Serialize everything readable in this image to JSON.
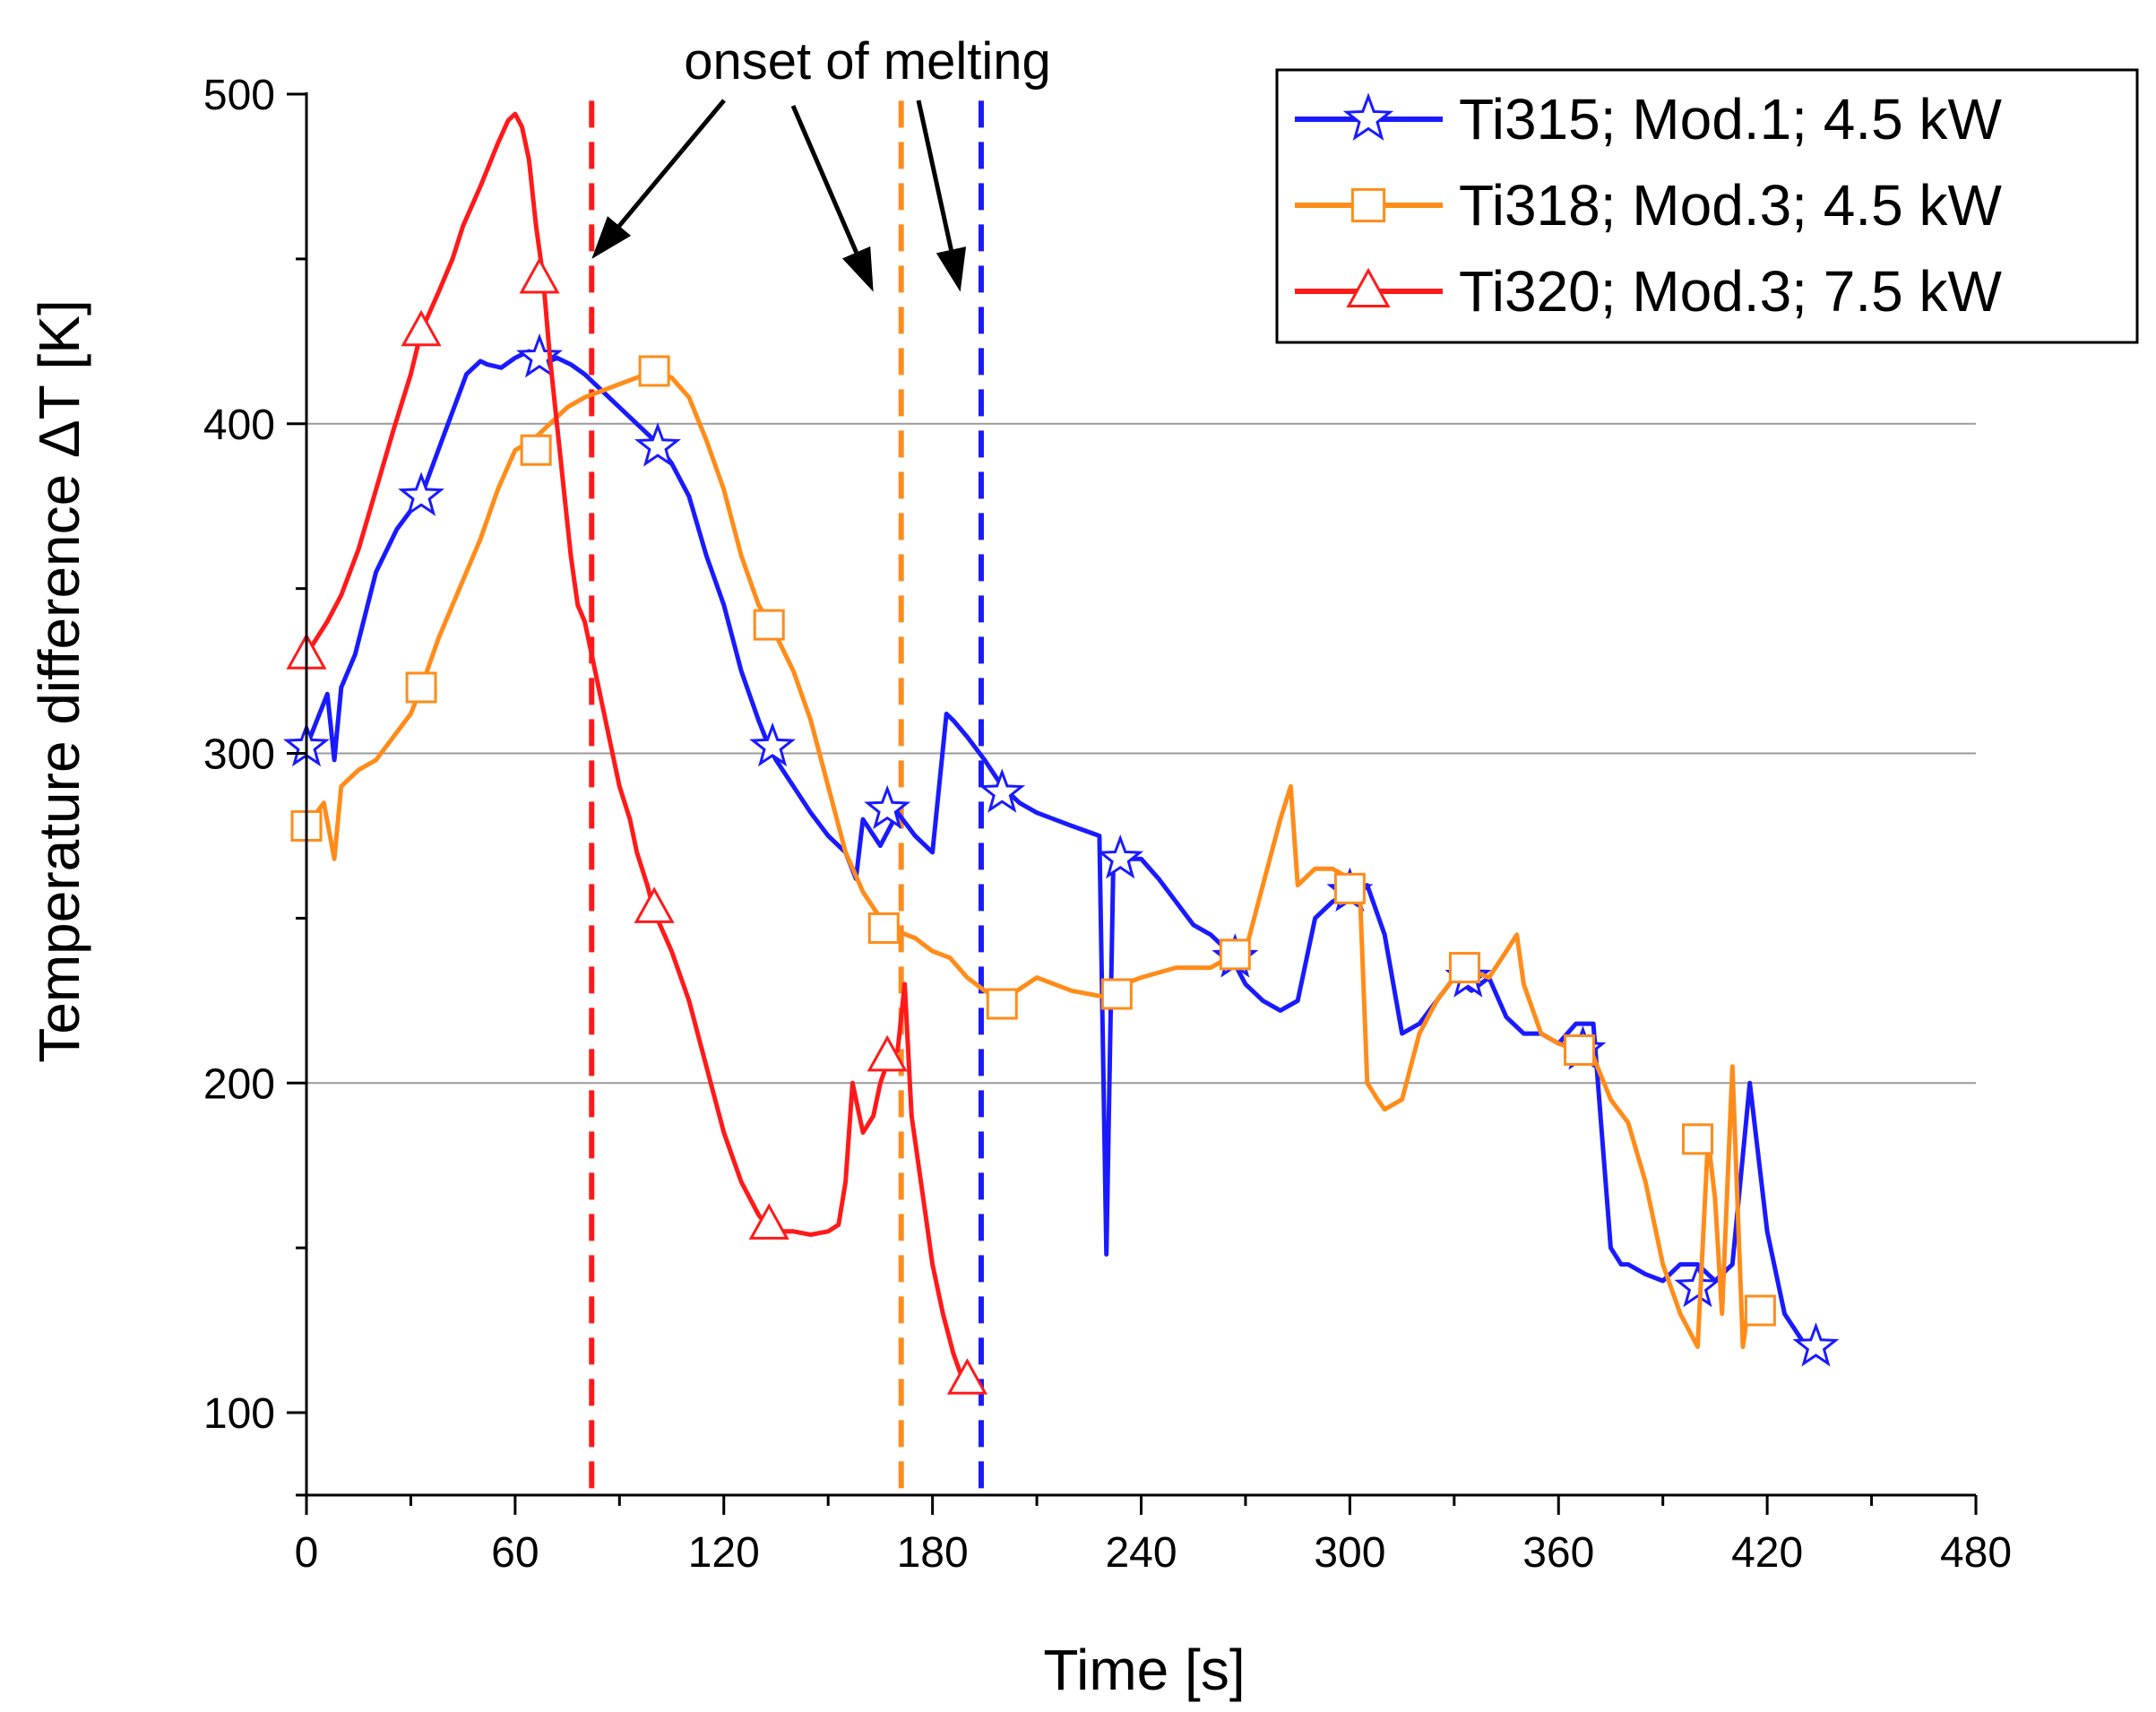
{
  "chart_data": {
    "type": "line",
    "title": "",
    "xlabel": "Time [s]",
    "ylabel": "Temperature difference ΔT [K]",
    "xlim": [
      0,
      480
    ],
    "ylim": [
      75,
      500
    ],
    "xticks": [
      0,
      60,
      120,
      180,
      240,
      300,
      360,
      420,
      480
    ],
    "yticks": [
      100,
      200,
      300,
      400,
      500
    ],
    "grid": {
      "horizontal": true,
      "values": [
        200,
        300,
        400
      ]
    },
    "legend_position": "top-right",
    "annotations": [
      {
        "text": "onset of melting",
        "arrows_to": [
          [
            82,
            450
          ],
          [
            163,
            440
          ],
          [
            188,
            440
          ]
        ]
      }
    ],
    "vlines": [
      {
        "x": 82,
        "series": "Ti320; Mod.3; 7.5 kW",
        "color": "#ff1a1a",
        "style": "dashed"
      },
      {
        "x": 171,
        "series": "Ti318; Mod.3; 4.5 kW",
        "color": "#ff8c1a",
        "style": "dashed"
      },
      {
        "x": 194,
        "series": "Ti315; Mod.1; 4.5 kW",
        "color": "#1a1aff",
        "style": "dashed"
      }
    ],
    "series": [
      {
        "name": "Ti315; Mod.1; 4.5 kW",
        "color": "#1a1aff",
        "marker": "star",
        "x": [
          0,
          3,
          6,
          8,
          10,
          14,
          20,
          26,
          33,
          40,
          46,
          50,
          52,
          56,
          60,
          64,
          68,
          72,
          76,
          80,
          85,
          90,
          95,
          100,
          105,
          110,
          115,
          120,
          125,
          130,
          133,
          135,
          140,
          145,
          150,
          155,
          158,
          160,
          165,
          168,
          170,
          175,
          180,
          184,
          186,
          190,
          195,
          200,
          205,
          210,
          215,
          220,
          228,
          230,
          232,
          235,
          240,
          245,
          250,
          255,
          260,
          265,
          270,
          275,
          280,
          285,
          290,
          295,
          300,
          305,
          310,
          315,
          320,
          325,
          330,
          335,
          340,
          345,
          350,
          355,
          360,
          365,
          370,
          375,
          378,
          380,
          385,
          390,
          395,
          400,
          405,
          410,
          415,
          420,
          425,
          430,
          434
        ],
        "y": [
          302,
          310,
          318,
          298,
          320,
          330,
          355,
          368,
          378,
          398,
          415,
          419,
          418,
          417,
          420,
          422,
          418,
          420,
          418,
          415,
          410,
          405,
          400,
          395,
          388,
          378,
          360,
          345,
          325,
          310,
          302,
          298,
          290,
          282,
          275,
          270,
          262,
          280,
          272,
          278,
          282,
          275,
          270,
          312,
          310,
          305,
          298,
          290,
          285,
          282,
          280,
          278,
          275,
          148,
          268,
          268,
          268,
          262,
          255,
          248,
          245,
          240,
          230,
          225,
          222,
          225,
          250,
          255,
          258,
          260,
          245,
          215,
          218,
          225,
          232,
          228,
          232,
          220,
          215,
          215,
          212,
          218,
          218,
          150,
          145,
          145,
          142,
          140,
          145,
          145,
          140,
          145,
          200,
          155,
          130,
          122,
          120
        ],
        "marker_x": [
          0,
          33,
          67,
          101,
          134,
          167,
          200,
          234,
          267,
          300,
          334,
          367,
          400,
          434
        ],
        "marker_y": [
          302,
          378,
          420,
          393,
          302,
          283,
          288,
          268,
          238,
          258,
          232,
          210,
          138,
          120
        ]
      },
      {
        "name": "Ti318; Mod.3; 4.5 kW",
        "color": "#ff8c1a",
        "marker": "square",
        "x": [
          0,
          5,
          8,
          10,
          15,
          20,
          25,
          30,
          33,
          38,
          42,
          46,
          50,
          55,
          60,
          65,
          70,
          75,
          80,
          85,
          90,
          95,
          100,
          105,
          110,
          115,
          120,
          125,
          130,
          134,
          140,
          145,
          150,
          155,
          160,
          165,
          167,
          170,
          175,
          180,
          185,
          190,
          195,
          200,
          210,
          220,
          230,
          235,
          240,
          250,
          260,
          265,
          270,
          275,
          280,
          283,
          285,
          290,
          295,
          300,
          303,
          305,
          308,
          310,
          315,
          320,
          325,
          330,
          335,
          340,
          345,
          348,
          350,
          355,
          360,
          365,
          370,
          375,
          380,
          385,
          390,
          395,
          400,
          403,
          405,
          407,
          410,
          413,
          415,
          418
        ],
        "y": [
          278,
          285,
          268,
          290,
          295,
          298,
          305,
          312,
          320,
          335,
          345,
          355,
          365,
          380,
          392,
          395,
          400,
          405,
          408,
          410,
          412,
          414,
          416,
          414,
          408,
          395,
          380,
          360,
          345,
          338,
          325,
          310,
          290,
          270,
          258,
          250,
          247,
          246,
          244,
          240,
          238,
          232,
          228,
          225,
          232,
          228,
          226,
          230,
          232,
          235,
          235,
          238,
          240,
          260,
          280,
          290,
          260,
          265,
          265,
          262,
          255,
          200,
          195,
          192,
          195,
          215,
          225,
          232,
          234,
          232,
          240,
          245,
          230,
          215,
          212,
          210,
          208,
          195,
          188,
          170,
          145,
          130,
          120,
          183,
          165,
          130,
          205,
          120,
          135,
          131
        ],
        "marker_x": [
          0,
          33,
          66,
          100,
          133,
          166,
          200,
          233,
          267,
          300,
          333,
          366,
          400,
          418
        ],
        "marker_y": [
          278,
          320,
          392,
          416,
          339,
          247,
          224,
          227,
          239,
          259,
          235,
          210,
          183,
          131
        ]
      },
      {
        "name": "Ti320; Mod.3; 7.5 kW",
        "color": "#ff1a1a",
        "marker": "triangle",
        "x": [
          0,
          3,
          6,
          10,
          15,
          20,
          25,
          30,
          33,
          38,
          42,
          45,
          50,
          55,
          58,
          60,
          62,
          64,
          66,
          68,
          70,
          72,
          74,
          76,
          78,
          80,
          82,
          85,
          88,
          90,
          93,
          95,
          98,
          100,
          105,
          110,
          115,
          120,
          125,
          130,
          133,
          137,
          140,
          145,
          150,
          153,
          155,
          157,
          160,
          163,
          165,
          167,
          170,
          172,
          174,
          176,
          178,
          180,
          183,
          186,
          188,
          190
        ],
        "y": [
          330,
          335,
          340,
          348,
          362,
          380,
          398,
          415,
          428,
          440,
          450,
          460,
          472,
          485,
          492,
          494,
          490,
          480,
          460,
          445,
          420,
          400,
          380,
          360,
          345,
          340,
          330,
          315,
          300,
          290,
          280,
          270,
          260,
          252,
          240,
          225,
          205,
          185,
          170,
          160,
          156,
          155,
          155,
          154,
          155,
          157,
          170,
          200,
          185,
          190,
          200,
          206,
          210,
          230,
          190,
          175,
          160,
          145,
          130,
          118,
          112,
          110
        ],
        "marker_x": [
          0,
          33,
          67,
          100,
          133,
          167,
          190
        ],
        "marker_y": [
          330,
          428,
          444,
          253,
          157,
          208,
          110
        ]
      }
    ]
  }
}
